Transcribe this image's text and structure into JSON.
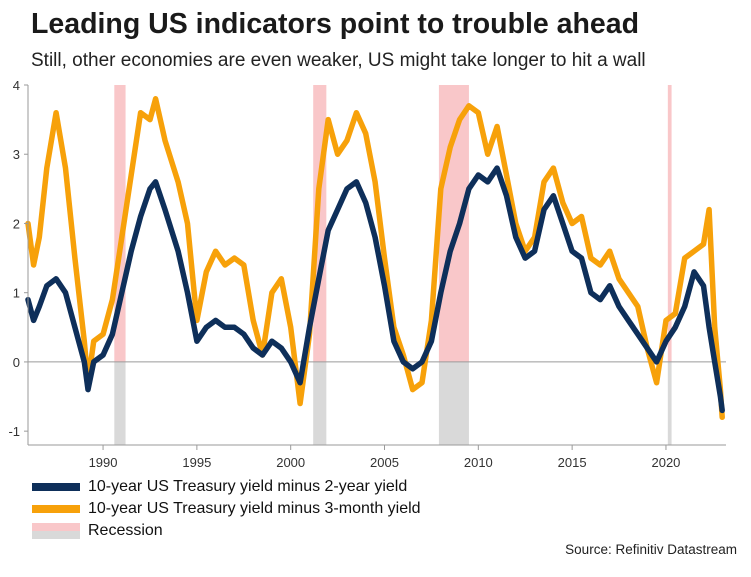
{
  "title": "Leading US indicators point to trouble ahead",
  "subtitle": "Still, other economies are even weaker, US might take longer to hit a wall",
  "source": "Source: Refinitiv Datastream",
  "legend": {
    "items": [
      {
        "label": "10-year US Treasury yield minus 2-year yield",
        "color": "#0e2f5a",
        "kind": "line"
      },
      {
        "label": "10-year US Treasury yield minus 3-month yield",
        "color": "#f7a10a",
        "kind": "line"
      },
      {
        "label": "Recession",
        "colors": [
          "#f9c7c9",
          "#d9d9d9"
        ],
        "kind": "band"
      }
    ]
  },
  "chart_data": {
    "type": "line",
    "xlim": [
      1986,
      2023.2
    ],
    "ylim": [
      -1.2,
      4
    ],
    "x_ticks": [
      1990,
      1995,
      2000,
      2005,
      2010,
      2015,
      2020
    ],
    "y_ticks": [
      -1,
      0,
      1,
      2,
      3,
      4
    ],
    "grid": false,
    "zero_line": true,
    "legend_position": "bottom-left",
    "recessions": [
      [
        1990.6,
        1991.2
      ],
      [
        2001.2,
        2001.9
      ],
      [
        2007.9,
        2009.5
      ],
      [
        2020.1,
        2020.3
      ]
    ],
    "series": [
      {
        "name": "10-year US Treasury yield minus 2-year yield",
        "color": "#0e2f5a",
        "x": [
          1986.0,
          1986.3,
          1986.6,
          1987.0,
          1987.5,
          1988.0,
          1988.5,
          1989.0,
          1989.2,
          1989.5,
          1990.0,
          1990.5,
          1991.0,
          1991.5,
          1992.0,
          1992.5,
          1992.8,
          1993.3,
          1994.0,
          1994.5,
          1995.0,
          1995.5,
          1996.0,
          1996.5,
          1997.0,
          1997.5,
          1998.0,
          1998.5,
          1999.0,
          1999.5,
          2000.0,
          2000.5,
          2001.0,
          2001.5,
          2002.0,
          2002.5,
          2003.0,
          2003.5,
          2004.0,
          2004.5,
          2005.0,
          2005.5,
          2006.0,
          2006.5,
          2007.0,
          2007.5,
          2008.0,
          2008.5,
          2009.0,
          2009.5,
          2010.0,
          2010.5,
          2011.0,
          2011.5,
          2012.0,
          2012.5,
          2013.0,
          2013.5,
          2014.0,
          2014.5,
          2015.0,
          2015.5,
          2016.0,
          2016.5,
          2017.0,
          2017.5,
          2018.0,
          2018.5,
          2019.0,
          2019.5,
          2020.0,
          2020.5,
          2021.0,
          2021.5,
          2022.0,
          2022.3,
          2022.6,
          2022.9,
          2023.0
        ],
        "values": [
          0.9,
          0.6,
          0.8,
          1.1,
          1.2,
          1.0,
          0.5,
          0.0,
          -0.4,
          0.0,
          0.1,
          0.4,
          1.0,
          1.6,
          2.1,
          2.5,
          2.6,
          2.2,
          1.6,
          1.0,
          0.3,
          0.5,
          0.6,
          0.5,
          0.5,
          0.4,
          0.2,
          0.1,
          0.3,
          0.2,
          0.0,
          -0.3,
          0.5,
          1.2,
          1.9,
          2.2,
          2.5,
          2.6,
          2.3,
          1.8,
          1.1,
          0.3,
          0.0,
          -0.1,
          0.0,
          0.3,
          1.0,
          1.6,
          2.0,
          2.5,
          2.7,
          2.6,
          2.8,
          2.4,
          1.8,
          1.5,
          1.6,
          2.2,
          2.4,
          2.0,
          1.6,
          1.5,
          1.0,
          0.9,
          1.1,
          0.8,
          0.6,
          0.4,
          0.2,
          0.0,
          0.3,
          0.5,
          0.8,
          1.3,
          1.1,
          0.5,
          0.0,
          -0.5,
          -0.7
        ]
      },
      {
        "name": "10-year US Treasury yield minus 3-month yield",
        "color": "#f7a10a",
        "x": [
          1986.0,
          1986.3,
          1986.6,
          1987.0,
          1987.5,
          1988.0,
          1988.5,
          1989.0,
          1989.2,
          1989.5,
          1990.0,
          1990.5,
          1991.0,
          1991.5,
          1992.0,
          1992.5,
          1992.8,
          1993.3,
          1994.0,
          1994.5,
          1995.0,
          1995.5,
          1996.0,
          1996.5,
          1997.0,
          1997.5,
          1998.0,
          1998.5,
          1999.0,
          1999.5,
          2000.0,
          2000.5,
          2001.0,
          2001.5,
          2002.0,
          2002.5,
          2003.0,
          2003.5,
          2004.0,
          2004.5,
          2005.0,
          2005.5,
          2006.0,
          2006.5,
          2007.0,
          2007.5,
          2008.0,
          2008.5,
          2009.0,
          2009.5,
          2010.0,
          2010.5,
          2011.0,
          2011.5,
          2012.0,
          2012.5,
          2013.0,
          2013.5,
          2014.0,
          2014.5,
          2015.0,
          2015.5,
          2016.0,
          2016.5,
          2017.0,
          2017.5,
          2018.0,
          2018.5,
          2019.0,
          2019.5,
          2020.0,
          2020.5,
          2021.0,
          2021.5,
          2022.0,
          2022.3,
          2022.6,
          2022.9,
          2023.0
        ],
        "values": [
          2.0,
          1.4,
          1.8,
          2.8,
          3.6,
          2.8,
          1.5,
          0.3,
          -0.3,
          0.3,
          0.4,
          0.9,
          1.8,
          2.7,
          3.6,
          3.5,
          3.8,
          3.2,
          2.6,
          2.0,
          0.6,
          1.3,
          1.6,
          1.4,
          1.5,
          1.4,
          0.6,
          0.1,
          1.0,
          1.2,
          0.5,
          -0.6,
          0.4,
          2.5,
          3.5,
          3.0,
          3.2,
          3.6,
          3.3,
          2.6,
          1.5,
          0.5,
          0.1,
          -0.4,
          -0.3,
          0.6,
          2.5,
          3.1,
          3.5,
          3.7,
          3.6,
          3.0,
          3.4,
          2.7,
          2.0,
          1.6,
          1.8,
          2.6,
          2.8,
          2.3,
          2.0,
          2.1,
          1.5,
          1.4,
          1.6,
          1.2,
          1.0,
          0.8,
          0.2,
          -0.3,
          0.6,
          0.7,
          1.5,
          1.6,
          1.7,
          2.2,
          0.5,
          -0.4,
          -0.8
        ]
      }
    ]
  }
}
